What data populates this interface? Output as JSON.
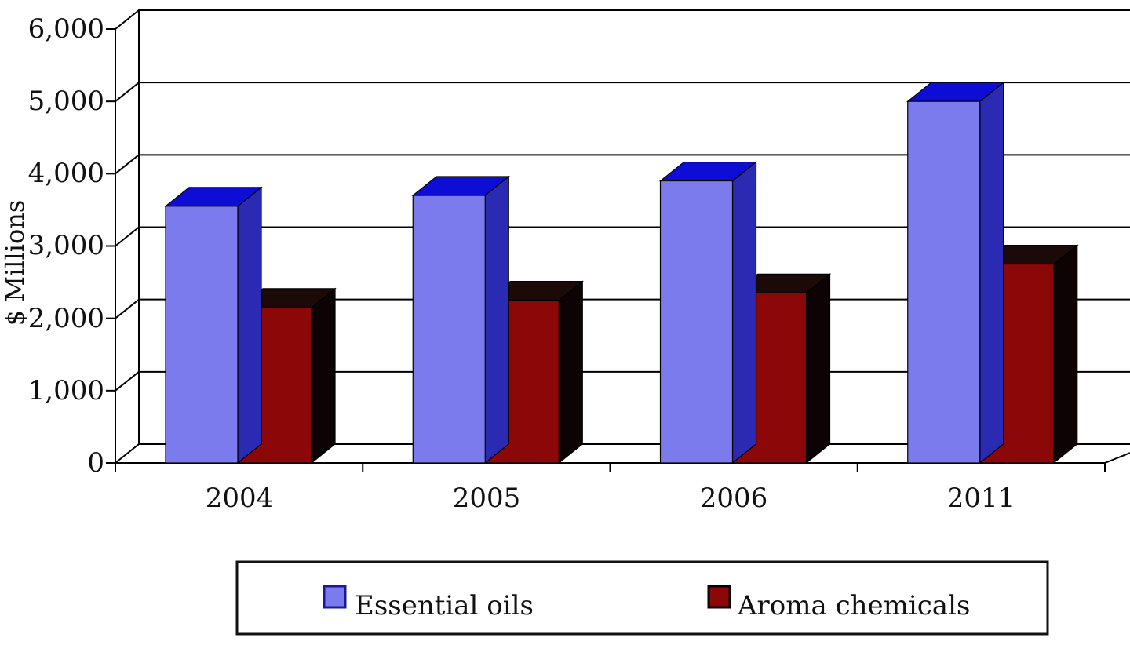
{
  "chart_data": {
    "type": "bar",
    "variant": "3d-clustered-column",
    "title": "",
    "xlabel": "",
    "ylabel": "$ Millions",
    "ylim": [
      0,
      6000
    ],
    "ytick_step": 1000,
    "ytick_labels": [
      "0",
      "1,000",
      "2,000",
      "3,000",
      "4,000",
      "5,000",
      "6,000"
    ],
    "categories": [
      "2004",
      "2005",
      "2006",
      "2011"
    ],
    "series": [
      {
        "name": "Essential oils",
        "values": [
          3550,
          3700,
          3900,
          5000
        ],
        "front_color": "#7b7bee",
        "top_color": "#0d0dd6",
        "side_color": "#2a2ab2",
        "swatch_border": "#1a1a99"
      },
      {
        "name": "Aroma chemicals",
        "values": [
          2150,
          2250,
          2350,
          2750
        ],
        "front_color": "#8c0708",
        "top_color": "#1c0a08",
        "side_color": "#0d0304",
        "swatch_border": "#000000"
      }
    ],
    "grid": true,
    "gridline_color": "#000000",
    "background_color": "#ffffff",
    "legend_position": "bottom"
  }
}
